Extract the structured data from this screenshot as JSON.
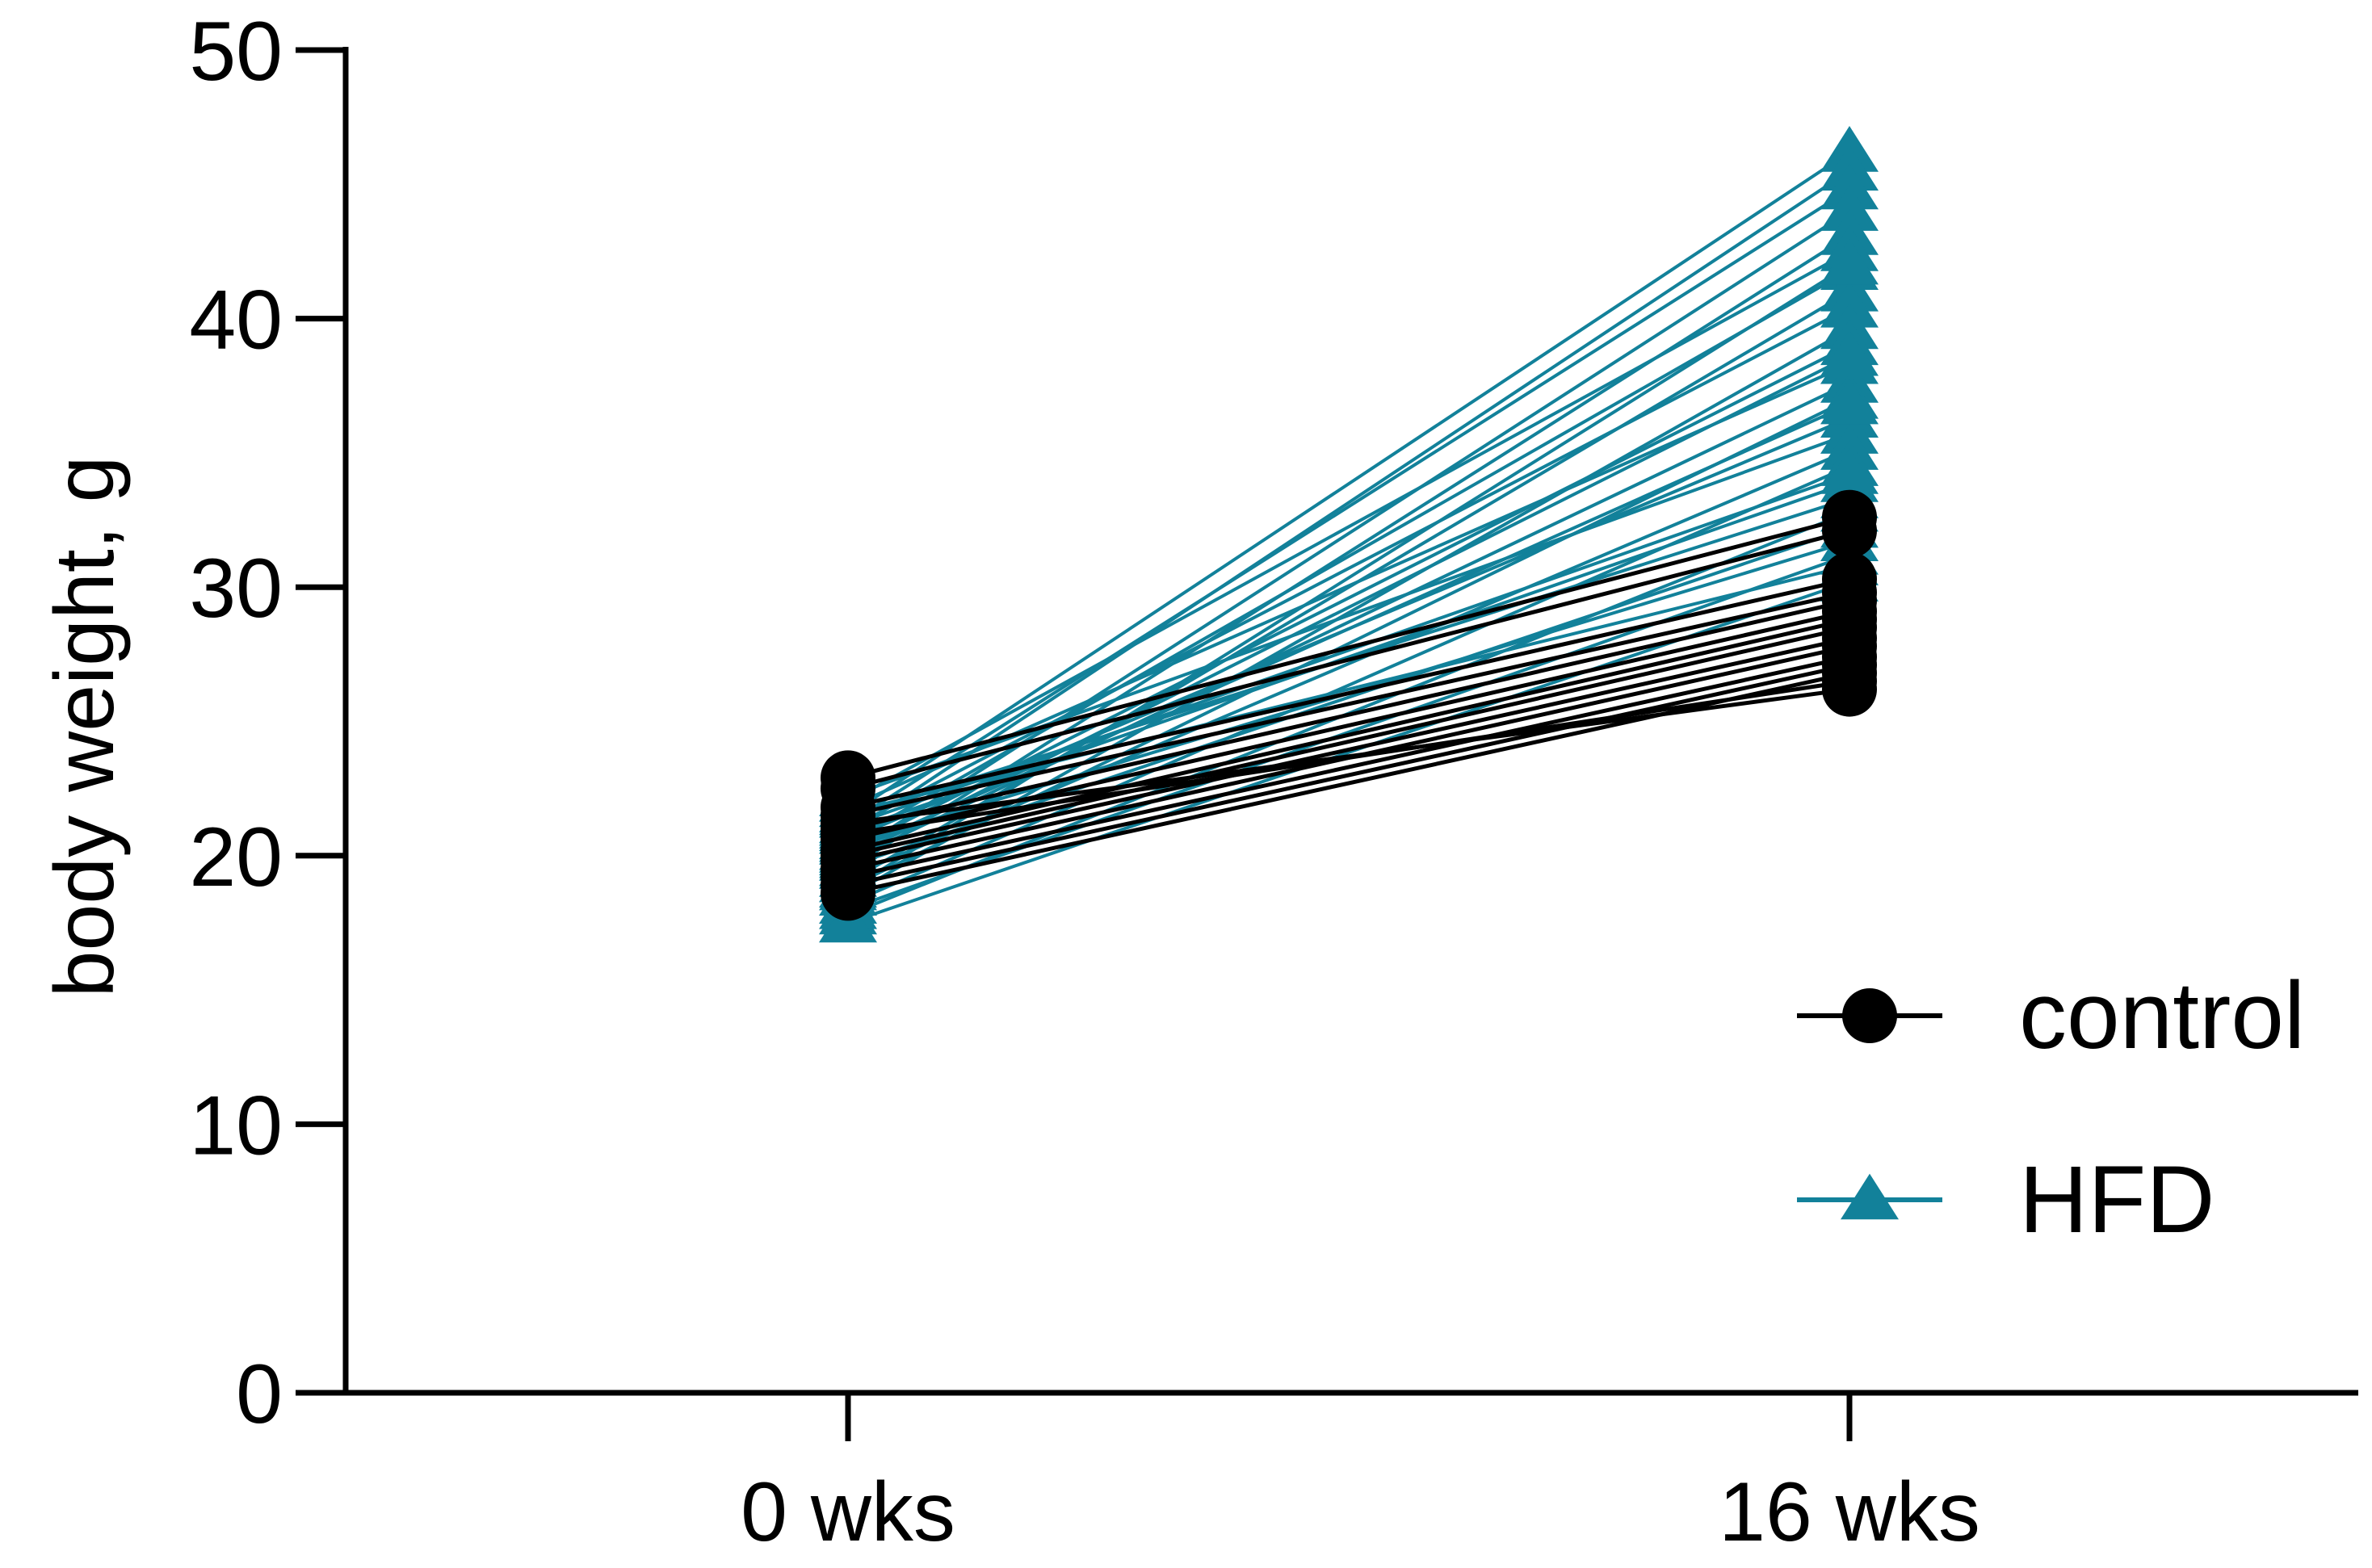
{
  "chart_data": {
    "type": "line",
    "title": "",
    "xlabel": "",
    "ylabel": "body weight, g",
    "categories": [
      "0 wks",
      "16 wks"
    ],
    "ylim": [
      0,
      50
    ],
    "yticks": [
      0,
      10,
      20,
      30,
      40,
      50
    ],
    "grid": false,
    "legend_position": "right",
    "colors": {
      "control": "#000000",
      "HFD": "#12819a"
    },
    "series": [
      {
        "name": "HFD",
        "marker": "triangle",
        "subjects": [
          [
            21.5,
            46.2
          ],
          [
            20.8,
            45.5
          ],
          [
            21.2,
            44.8
          ],
          [
            20.0,
            44.0
          ],
          [
            19.5,
            43.1
          ],
          [
            22.0,
            42.5
          ],
          [
            20.5,
            41.8
          ],
          [
            19.0,
            41.0
          ],
          [
            21.0,
            40.4
          ],
          [
            18.5,
            39.6
          ],
          [
            20.2,
            39.0
          ],
          [
            21.8,
            38.3
          ],
          [
            19.8,
            37.6
          ],
          [
            18.8,
            37.0
          ],
          [
            20.6,
            36.3
          ],
          [
            22.2,
            35.7
          ],
          [
            19.2,
            35.1
          ],
          [
            18.2,
            34.5
          ],
          [
            20.9,
            33.9
          ],
          [
            21.4,
            33.3
          ],
          [
            17.8,
            32.8
          ],
          [
            19.6,
            32.2
          ],
          [
            20.4,
            31.7
          ],
          [
            18.0,
            31.2
          ],
          [
            21.6,
            30.8
          ],
          [
            17.5,
            30.2
          ],
          [
            19.9,
            38.6
          ],
          [
            18.7,
            42.0
          ],
          [
            20.1,
            36.8
          ],
          [
            21.1,
            34.2
          ]
        ]
      },
      {
        "name": "control",
        "marker": "circle",
        "subjects": [
          [
            22.9,
            32.6
          ],
          [
            22.5,
            32.1
          ],
          [
            21.8,
            30.3
          ],
          [
            21.5,
            29.8
          ],
          [
            21.0,
            29.5
          ],
          [
            20.6,
            29.1
          ],
          [
            20.2,
            28.8
          ],
          [
            20.0,
            28.5
          ],
          [
            19.8,
            28.1
          ],
          [
            19.5,
            27.8
          ],
          [
            19.2,
            27.4
          ],
          [
            18.9,
            27.1
          ],
          [
            18.6,
            26.8
          ],
          [
            20.8,
            26.5
          ],
          [
            21.2,
            26.2
          ]
        ]
      }
    ]
  }
}
